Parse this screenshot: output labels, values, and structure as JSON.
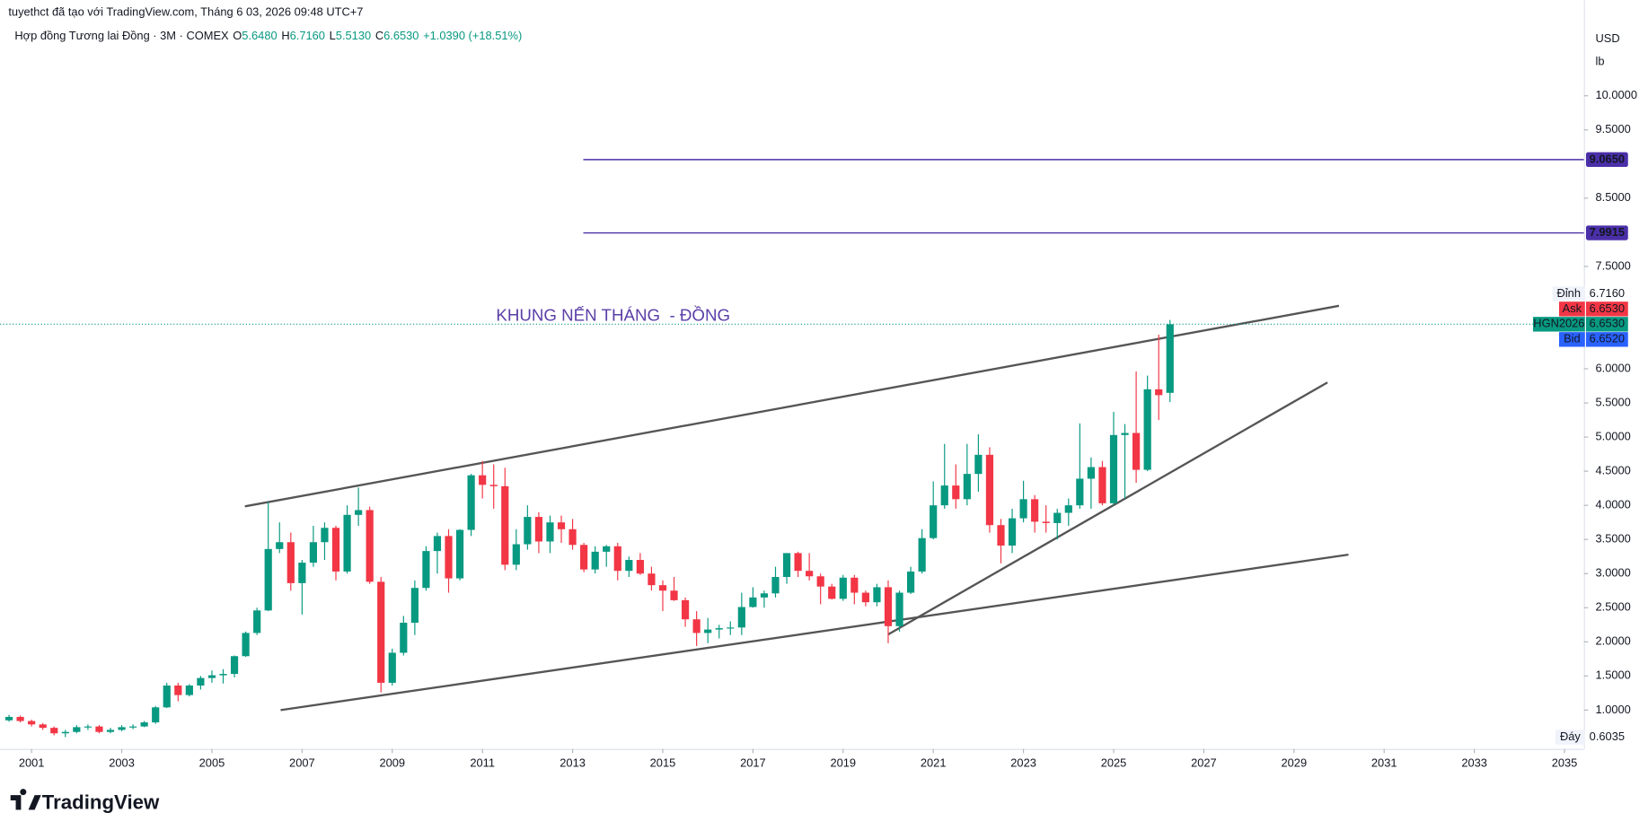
{
  "header": {
    "credit": "tuyethct đã tạo với TradingView.com, Tháng 6 03, 2026 09:48 UTC+7",
    "brand": "TradingView"
  },
  "chart_data": {
    "type": "candlestick",
    "title": "Hợp đồng Tương lai Đồng · 3M · COMEX",
    "legend_values": [
      {
        "label": "O",
        "text": "5.6480"
      },
      {
        "label": "H",
        "text": "6.7160"
      },
      {
        "label": "L",
        "text": "5.5130"
      },
      {
        "label": "C",
        "text": "6.6530"
      }
    ],
    "change": "+1.0390 (+18.51%)",
    "currency": "USD",
    "unit": "lb",
    "annotation": "KHUNG NẾN THÁNG  - ĐỒNG",
    "up_color": "#089981",
    "down_color": "#f23645",
    "grid": false,
    "xlim": [
      2000.3,
      2035.43
    ],
    "xticks": [
      2001,
      2003,
      2005,
      2007,
      2009,
      2011,
      2013,
      2015,
      2017,
      2019,
      2021,
      2023,
      2025,
      2027,
      2029,
      2031,
      2033,
      2035
    ],
    "ylim": [
      0.431,
      11.4
    ],
    "yticks": [
      {
        "value": 1,
        "label": "1.0000"
      },
      {
        "value": 1.5,
        "label": "1.5000"
      },
      {
        "value": 2,
        "label": "2.0000"
      },
      {
        "value": 2.5,
        "label": "2.5000"
      },
      {
        "value": 3,
        "label": "3.0000"
      },
      {
        "value": 3.5,
        "label": "3.5000"
      },
      {
        "value": 4,
        "label": "4.0000"
      },
      {
        "value": 4.5,
        "label": "4.5000"
      },
      {
        "value": 5,
        "label": "5.0000"
      },
      {
        "value": 5.5,
        "label": "5.5000"
      },
      {
        "value": 6,
        "label": "6.0000"
      },
      {
        "value": 7.5,
        "label": "7.5000"
      },
      {
        "value": 8.5,
        "label": "8.5000"
      },
      {
        "value": 9.5,
        "label": "9.5000"
      },
      {
        "value": 10,
        "label": "10.0000"
      }
    ],
    "x": [
      2000.5,
      2000.75,
      2001,
      2001.25,
      2001.5,
      2001.75,
      2002,
      2002.25,
      2002.5,
      2002.75,
      2003,
      2003.25,
      2003.5,
      2003.75,
      2004,
      2004.25,
      2004.5,
      2004.75,
      2005,
      2005.25,
      2005.5,
      2005.75,
      2006,
      2006.25,
      2006.5,
      2006.75,
      2007,
      2007.25,
      2007.5,
      2007.75,
      2008,
      2008.25,
      2008.5,
      2008.75,
      2009,
      2009.25,
      2009.5,
      2009.75,
      2010,
      2010.25,
      2010.5,
      2010.75,
      2011,
      2011.25,
      2011.5,
      2011.75,
      2012,
      2012.25,
      2012.5,
      2012.75,
      2013,
      2013.25,
      2013.5,
      2013.75,
      2014,
      2014.25,
      2014.5,
      2014.75,
      2015,
      2015.25,
      2015.5,
      2015.75,
      2016,
      2016.25,
      2016.5,
      2016.75,
      2017,
      2017.25,
      2017.5,
      2017.75,
      2018,
      2018.25,
      2018.5,
      2018.75,
      2019,
      2019.25,
      2019.5,
      2019.75,
      2020,
      2020.25,
      2020.5,
      2020.75,
      2021,
      2021.25,
      2021.5,
      2021.75,
      2022,
      2022.25,
      2022.5,
      2022.75,
      2023,
      2023.25,
      2023.5,
      2023.75,
      2024,
      2024.25,
      2024.5,
      2024.75,
      2025,
      2025.25,
      2025.5,
      2025.75,
      2026,
      2026.25
    ],
    "candles": [
      [
        0.85,
        0.93,
        0.83,
        0.9
      ],
      [
        0.9,
        0.92,
        0.82,
        0.84
      ],
      [
        0.84,
        0.86,
        0.76,
        0.79
      ],
      [
        0.79,
        0.81,
        0.71,
        0.74
      ],
      [
        0.74,
        0.76,
        0.63,
        0.66
      ],
      [
        0.66,
        0.71,
        0.6035,
        0.68
      ],
      [
        0.68,
        0.78,
        0.66,
        0.75
      ],
      [
        0.75,
        0.79,
        0.71,
        0.76
      ],
      [
        0.76,
        0.78,
        0.66,
        0.68
      ],
      [
        0.68,
        0.74,
        0.66,
        0.71
      ],
      [
        0.71,
        0.78,
        0.69,
        0.75
      ],
      [
        0.75,
        0.79,
        0.72,
        0.76
      ],
      [
        0.76,
        0.84,
        0.75,
        0.82
      ],
      [
        0.82,
        1.06,
        0.8,
        1.04
      ],
      [
        1.04,
        1.4,
        1.03,
        1.36
      ],
      [
        1.36,
        1.4,
        1.13,
        1.22
      ],
      [
        1.22,
        1.38,
        1.2,
        1.36
      ],
      [
        1.36,
        1.5,
        1.3,
        1.47
      ],
      [
        1.47,
        1.58,
        1.4,
        1.51
      ],
      [
        1.51,
        1.6,
        1.39,
        1.53
      ],
      [
        1.53,
        1.8,
        1.48,
        1.79
      ],
      [
        1.79,
        2.15,
        1.78,
        2.13
      ],
      [
        2.13,
        2.5,
        2.1,
        2.46
      ],
      [
        2.46,
        4.05,
        2.45,
        3.36
      ],
      [
        3.36,
        3.75,
        3.3,
        3.46
      ],
      [
        3.46,
        3.6,
        2.75,
        2.86
      ],
      [
        2.86,
        3.2,
        2.4,
        3.16
      ],
      [
        3.16,
        3.7,
        3.1,
        3.46
      ],
      [
        3.46,
        3.75,
        3.2,
        3.67
      ],
      [
        3.67,
        3.7,
        2.9,
        3.03
      ],
      [
        3.03,
        4.0,
        3.0,
        3.86
      ],
      [
        3.86,
        4.26,
        3.7,
        3.93
      ],
      [
        3.93,
        3.98,
        2.85,
        2.88
      ],
      [
        2.88,
        2.95,
        1.26,
        1.4
      ],
      [
        1.4,
        1.9,
        1.36,
        1.84
      ],
      [
        1.84,
        2.38,
        1.8,
        2.28
      ],
      [
        2.28,
        2.9,
        2.1,
        2.79
      ],
      [
        2.79,
        3.4,
        2.75,
        3.33
      ],
      [
        3.33,
        3.6,
        3.0,
        3.55
      ],
      [
        3.55,
        3.65,
        2.72,
        2.93
      ],
      [
        2.93,
        3.65,
        2.9,
        3.64
      ],
      [
        3.64,
        4.46,
        3.55,
        4.44
      ],
      [
        4.44,
        4.65,
        4.1,
        4.3
      ],
      [
        4.3,
        4.6,
        3.95,
        4.28
      ],
      [
        4.28,
        4.55,
        3.05,
        3.13
      ],
      [
        3.13,
        3.65,
        3.05,
        3.43
      ],
      [
        3.43,
        4.0,
        3.35,
        3.83
      ],
      [
        3.83,
        3.9,
        3.3,
        3.47
      ],
      [
        3.47,
        3.85,
        3.3,
        3.75
      ],
      [
        3.75,
        3.85,
        3.45,
        3.65
      ],
      [
        3.65,
        3.8,
        3.35,
        3.42
      ],
      [
        3.42,
        3.45,
        3.02,
        3.06
      ],
      [
        3.06,
        3.4,
        3.0,
        3.32
      ],
      [
        3.32,
        3.42,
        3.1,
        3.4
      ],
      [
        3.4,
        3.45,
        2.9,
        3.04
      ],
      [
        3.04,
        3.25,
        2.95,
        3.2
      ],
      [
        3.2,
        3.3,
        2.98,
        3.0
      ],
      [
        3.0,
        3.1,
        2.75,
        2.83
      ],
      [
        2.83,
        2.9,
        2.45,
        2.75
      ],
      [
        2.75,
        2.95,
        2.6,
        2.61
      ],
      [
        2.61,
        2.65,
        2.22,
        2.33
      ],
      [
        2.33,
        2.45,
        1.94,
        2.13
      ],
      [
        2.13,
        2.35,
        1.98,
        2.18
      ],
      [
        2.18,
        2.25,
        2.05,
        2.2
      ],
      [
        2.2,
        2.3,
        2.1,
        2.21
      ],
      [
        2.21,
        2.72,
        2.1,
        2.51
      ],
      [
        2.51,
        2.8,
        2.5,
        2.65
      ],
      [
        2.65,
        2.75,
        2.5,
        2.71
      ],
      [
        2.71,
        3.1,
        2.65,
        2.95
      ],
      [
        2.95,
        3.3,
        2.85,
        3.3
      ],
      [
        3.3,
        3.32,
        2.95,
        3.04
      ],
      [
        3.04,
        3.3,
        2.9,
        2.96
      ],
      [
        2.96,
        3.0,
        2.55,
        2.81
      ],
      [
        2.81,
        2.85,
        2.62,
        2.63
      ],
      [
        2.63,
        2.98,
        2.6,
        2.94
      ],
      [
        2.94,
        2.98,
        2.55,
        2.72
      ],
      [
        2.72,
        2.75,
        2.52,
        2.58
      ],
      [
        2.58,
        2.85,
        2.52,
        2.8
      ],
      [
        2.8,
        2.9,
        1.98,
        2.23
      ],
      [
        2.23,
        2.75,
        2.15,
        2.72
      ],
      [
        2.72,
        3.1,
        2.7,
        3.03
      ],
      [
        3.03,
        3.65,
        3.0,
        3.52
      ],
      [
        3.52,
        4.35,
        3.5,
        4.0
      ],
      [
        4.0,
        4.9,
        3.95,
        4.29
      ],
      [
        4.29,
        4.6,
        3.95,
        4.09
      ],
      [
        4.09,
        4.9,
        4.0,
        4.46
      ],
      [
        4.46,
        5.04,
        4.2,
        4.74
      ],
      [
        4.74,
        4.85,
        3.6,
        3.71
      ],
      [
        3.71,
        3.8,
        3.15,
        3.41
      ],
      [
        3.41,
        3.95,
        3.3,
        3.81
      ],
      [
        3.81,
        4.36,
        3.75,
        4.09
      ],
      [
        4.09,
        4.15,
        3.6,
        3.76
      ],
      [
        3.76,
        4.0,
        3.6,
        3.74
      ],
      [
        3.74,
        3.95,
        3.5,
        3.89
      ],
      [
        3.89,
        4.1,
        3.7,
        4.0
      ],
      [
        4.0,
        5.2,
        3.95,
        4.39
      ],
      [
        4.39,
        4.7,
        3.95,
        4.56
      ],
      [
        4.56,
        4.65,
        4.0,
        4.03
      ],
      [
        4.03,
        5.37,
        4.0,
        5.03
      ],
      [
        5.03,
        5.19,
        4.1,
        5.06
      ],
      [
        5.06,
        5.96,
        4.33,
        4.52
      ],
      [
        4.52,
        5.9,
        4.5,
        5.7
      ],
      [
        5.7,
        6.5,
        5.25,
        5.614
      ],
      [
        5.648,
        6.716,
        5.513,
        6.653
      ]
    ],
    "horizontal_lines": [
      {
        "value": 9.065,
        "label": "9.0650",
        "color": "#4a2fa8"
      },
      {
        "value": 7.9915,
        "label": "7.9915",
        "color": "#4a2fa8"
      }
    ],
    "price_tags": [
      {
        "name": "Đỉnh",
        "value": 6.716,
        "label": "6.7160"
      },
      {
        "name": "Ask",
        "value": 6.653,
        "label": "6.6530",
        "color": "#f23645"
      },
      {
        "name": "HGN2026",
        "value": 6.653,
        "label": "6.6530",
        "color": "#089981"
      },
      {
        "name": "Bid",
        "value": 6.652,
        "label": "6.6520",
        "color": "#2962ff"
      }
    ],
    "low_tag": {
      "name": "Đáy",
      "value": 0.6035,
      "label": "0.6035"
    }
  }
}
